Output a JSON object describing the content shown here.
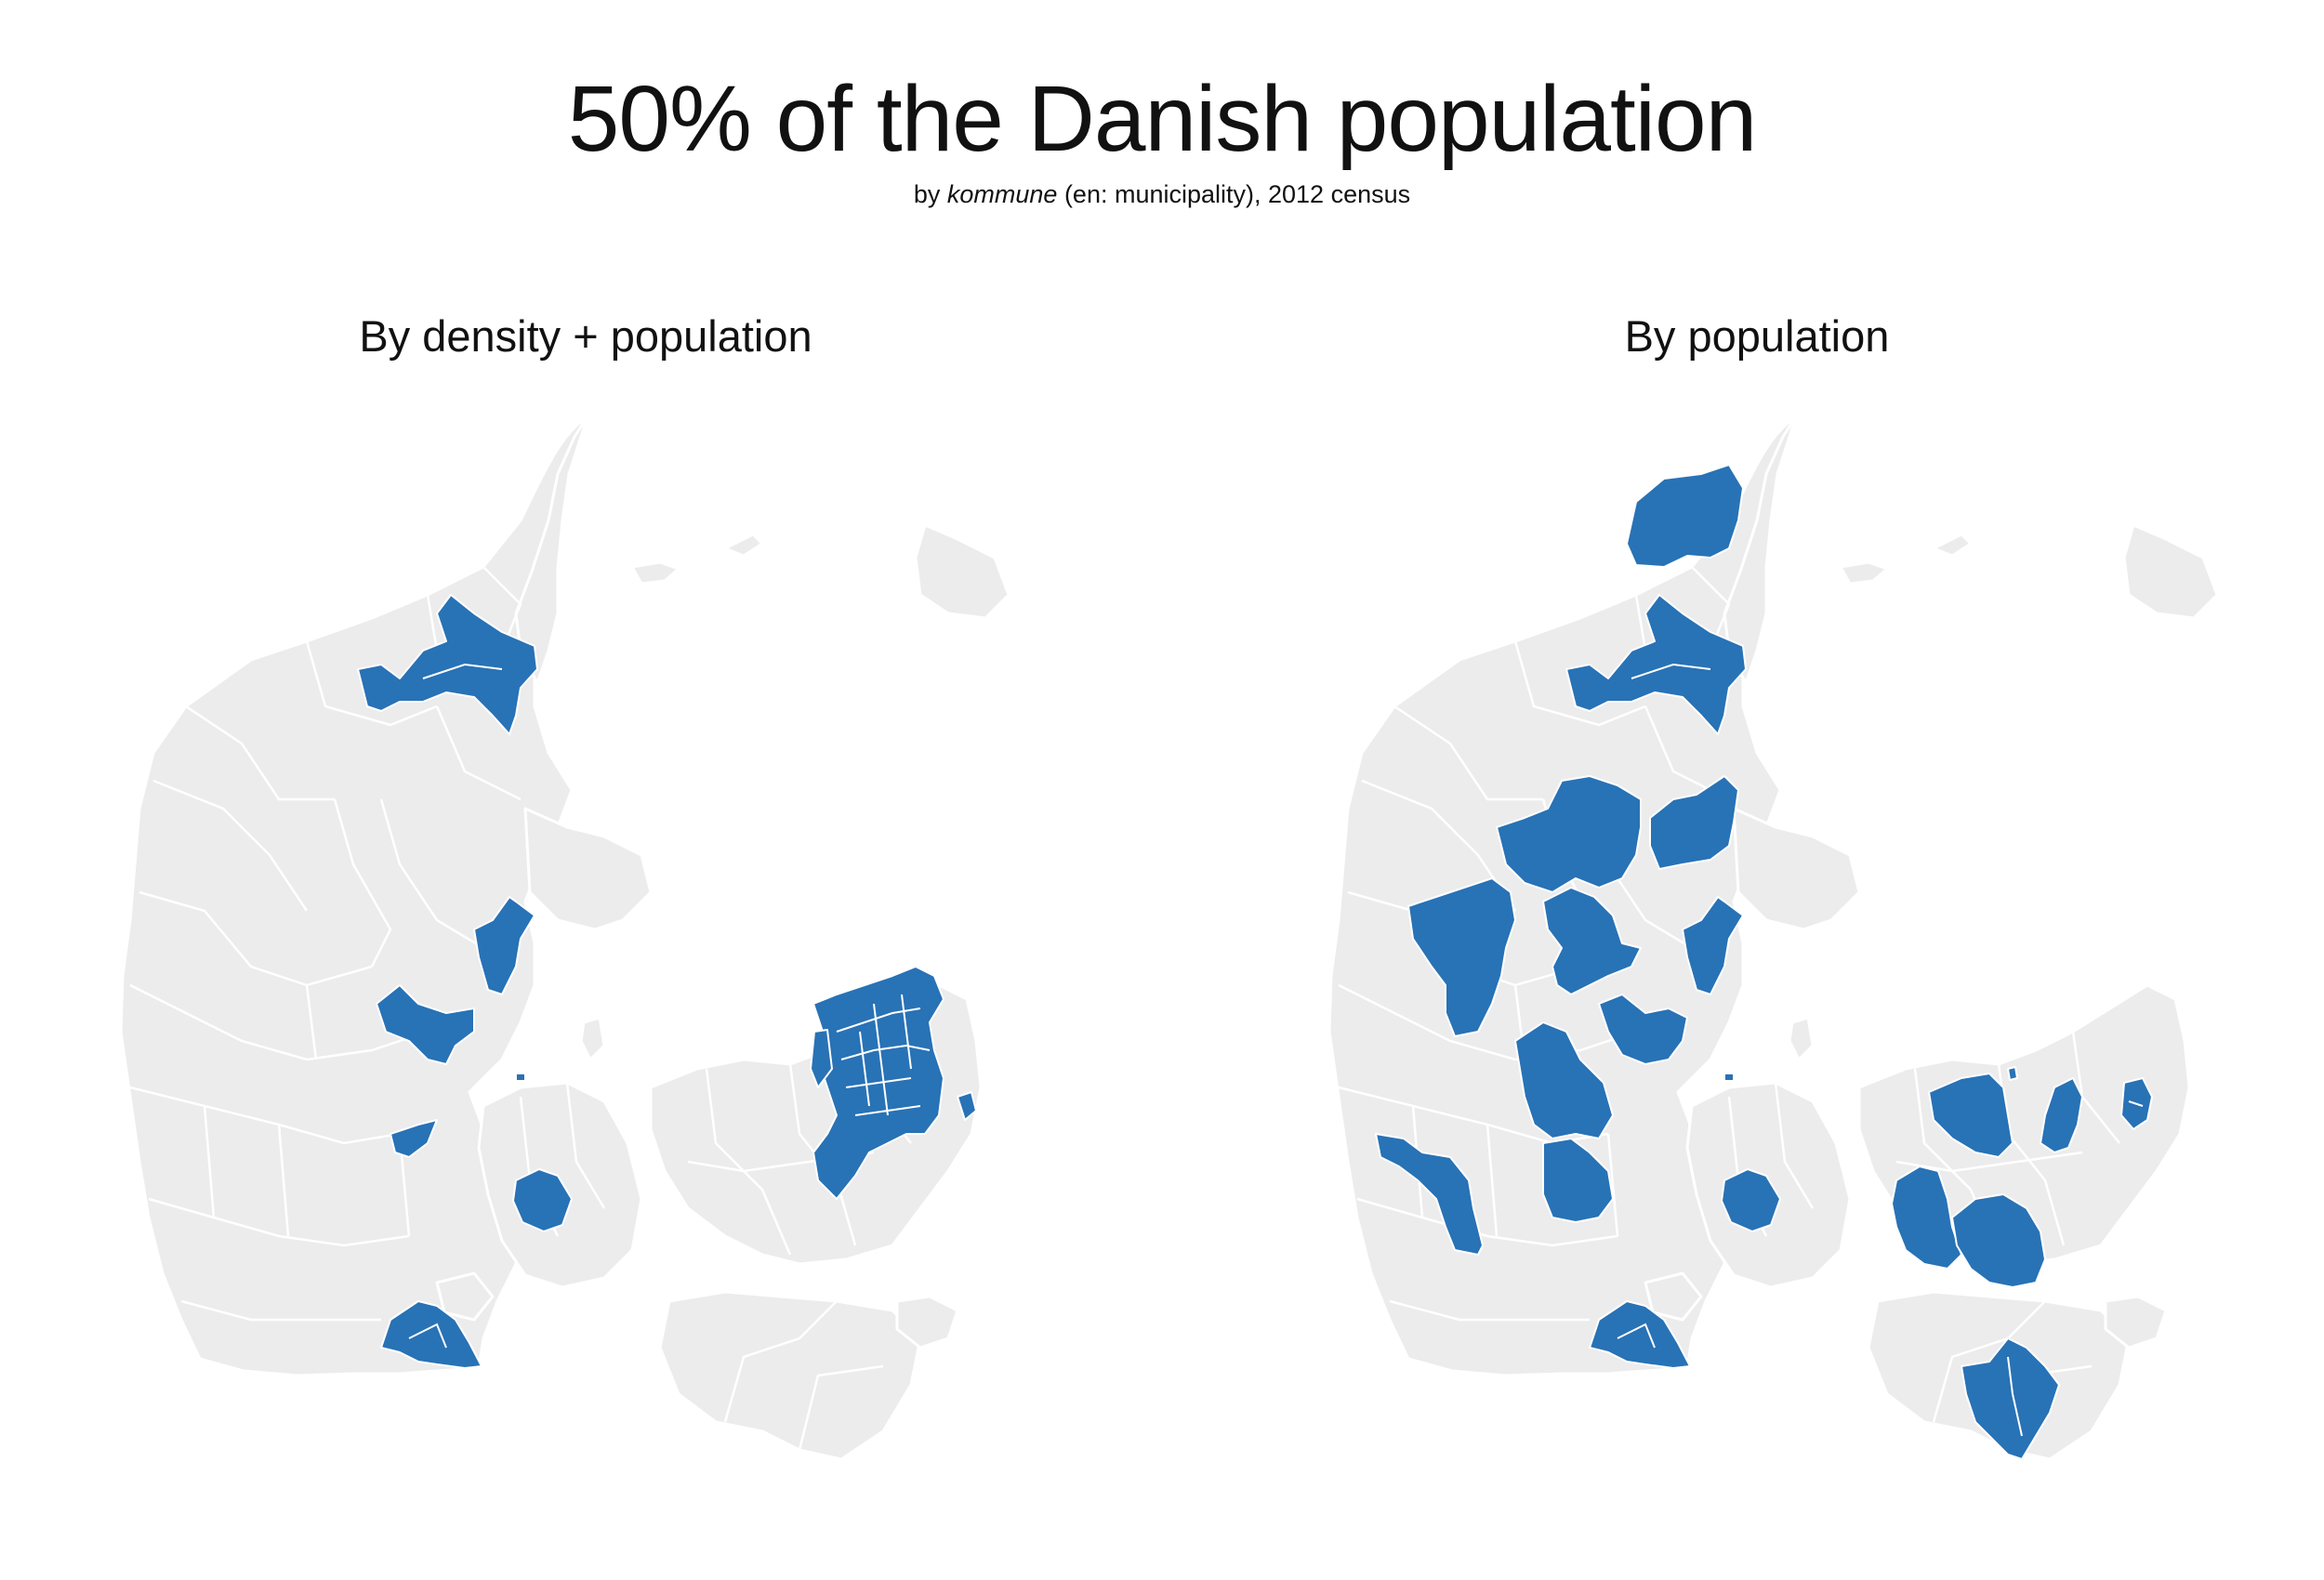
{
  "header": {
    "title": "50% of the Danish population",
    "subtitle_prefix": "by ",
    "subtitle_em": "kommune",
    "subtitle_suffix": " (en: municipality), 2012 census"
  },
  "maps": [
    {
      "id": "left",
      "title": "By density + population"
    },
    {
      "id": "right",
      "title": "By population"
    }
  ],
  "colors": {
    "highlight": "#2872b6",
    "land": "#ececec",
    "borders": "#ffffff",
    "background": "#ffffff"
  }
}
